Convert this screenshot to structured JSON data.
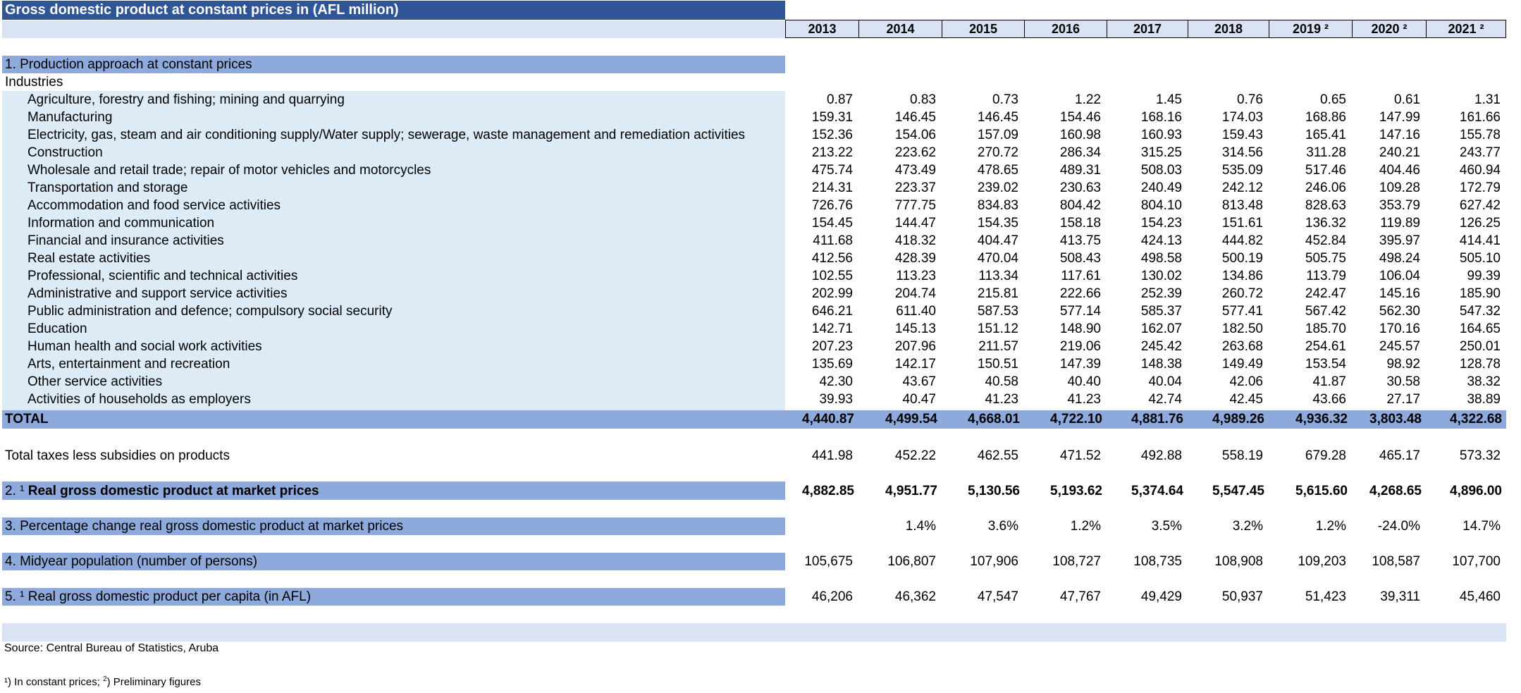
{
  "title": "Gross domestic product at constant prices in (AFL million)",
  "years": [
    "2013",
    "2014",
    "2015",
    "2016",
    "2017",
    "2018",
    "2019 ²",
    "2020 ²",
    "2021 ²"
  ],
  "section1": {
    "heading": "1. Production approach at constant prices",
    "subheading": "Industries",
    "rows": [
      {
        "label": "Agriculture, forestry and fishing; mining and quarrying",
        "values": [
          "0.87",
          "0.83",
          "0.73",
          "1.22",
          "1.45",
          "0.76",
          "0.65",
          "0.61",
          "1.31"
        ]
      },
      {
        "label": "Manufacturing",
        "values": [
          "159.31",
          "146.45",
          "146.45",
          "154.46",
          "168.16",
          "174.03",
          "168.86",
          "147.99",
          "161.66"
        ]
      },
      {
        "label": "Electricity, gas, steam and air conditioning supply/Water supply; sewerage, waste management and remediation activities",
        "values": [
          "152.36",
          "154.06",
          "157.09",
          "160.98",
          "160.93",
          "159.43",
          "165.41",
          "147.16",
          "155.78"
        ]
      },
      {
        "label": "Construction",
        "values": [
          "213.22",
          "223.62",
          "270.72",
          "286.34",
          "315.25",
          "314.56",
          "311.28",
          "240.21",
          "243.77"
        ]
      },
      {
        "label": "Wholesale and retail trade; repair of motor vehicles and motorcycles",
        "values": [
          "475.74",
          "473.49",
          "478.65",
          "489.31",
          "508.03",
          "535.09",
          "517.46",
          "404.46",
          "460.94"
        ]
      },
      {
        "label": "Transportation and storage",
        "values": [
          "214.31",
          "223.37",
          "239.02",
          "230.63",
          "240.49",
          "242.12",
          "246.06",
          "109.28",
          "172.79"
        ]
      },
      {
        "label": "Accommodation and food service activities",
        "values": [
          "726.76",
          "777.75",
          "834.83",
          "804.42",
          "804.10",
          "813.48",
          "828.63",
          "353.79",
          "627.42"
        ]
      },
      {
        "label": "Information and communication",
        "values": [
          "154.45",
          "144.47",
          "154.35",
          "158.18",
          "154.23",
          "151.61",
          "136.32",
          "119.89",
          "126.25"
        ]
      },
      {
        "label": "Financial and insurance activities",
        "values": [
          "411.68",
          "418.32",
          "404.47",
          "413.75",
          "424.13",
          "444.82",
          "452.84",
          "395.97",
          "414.41"
        ]
      },
      {
        "label": "Real estate activities",
        "values": [
          "412.56",
          "428.39",
          "470.04",
          "508.43",
          "498.58",
          "500.19",
          "505.75",
          "498.24",
          "505.10"
        ]
      },
      {
        "label": "Professional, scientific and technical activities",
        "values": [
          "102.55",
          "113.23",
          "113.34",
          "117.61",
          "130.02",
          "134.86",
          "113.79",
          "106.04",
          "99.39"
        ]
      },
      {
        "label": "Administrative and support service activities",
        "values": [
          "202.99",
          "204.74",
          "215.81",
          "222.66",
          "252.39",
          "260.72",
          "242.47",
          "145.16",
          "185.90"
        ]
      },
      {
        "label": "Public administration and defence; compulsory social security",
        "values": [
          "646.21",
          "611.40",
          "587.53",
          "577.14",
          "585.37",
          "577.41",
          "567.42",
          "562.30",
          "547.32"
        ]
      },
      {
        "label": "Education",
        "values": [
          "142.71",
          "145.13",
          "151.12",
          "148.90",
          "162.07",
          "182.50",
          "185.70",
          "170.16",
          "164.65"
        ]
      },
      {
        "label": "Human health and social work activities",
        "values": [
          "207.23",
          "207.96",
          "211.57",
          "219.06",
          "245.42",
          "263.68",
          "254.61",
          "245.57",
          "250.01"
        ]
      },
      {
        "label": "Arts, entertainment and recreation",
        "values": [
          "135.69",
          "142.17",
          "150.51",
          "147.39",
          "148.38",
          "149.49",
          "153.54",
          "98.92",
          "128.78"
        ]
      },
      {
        "label": "Other service activities",
        "values": [
          "42.30",
          "43.67",
          "40.58",
          "40.40",
          "40.04",
          "42.06",
          "41.87",
          "30.58",
          "38.32"
        ]
      },
      {
        "label": "Activities of households as employers",
        "values": [
          "39.93",
          "40.47",
          "41.23",
          "41.23",
          "42.74",
          "42.45",
          "43.66",
          "27.17",
          "38.89"
        ]
      }
    ],
    "total": {
      "label": "TOTAL",
      "values": [
        "4,440.87",
        "4,499.54",
        "4,668.01",
        "4,722.10",
        "4,881.76",
        "4,989.26",
        "4,936.32",
        "3,803.48",
        "4,322.68"
      ]
    }
  },
  "taxes": {
    "label": "Total taxes less subsidies on products",
    "values": [
      "441.98",
      "452.22",
      "462.55",
      "471.52",
      "492.88",
      "558.19",
      "679.28",
      "465.17",
      "573.32"
    ]
  },
  "section2": {
    "label_num": "2. ¹",
    "label": "Real gross domestic product at market prices",
    "values": [
      "4,882.85",
      "4,951.77",
      "5,130.56",
      "5,193.62",
      "5,374.64",
      "5,547.45",
      "5,615.60",
      "4,268.65",
      "4,896.00"
    ]
  },
  "section3": {
    "label": "3. Percentage change real gross domestic product at market prices",
    "values": [
      "",
      "1.4%",
      "3.6%",
      "1.2%",
      "3.5%",
      "3.2%",
      "1.2%",
      "-24.0%",
      "14.7%"
    ]
  },
  "section4": {
    "label": "4. Midyear population (number of persons)",
    "values": [
      "105,675",
      "106,807",
      "107,906",
      "108,727",
      "108,735",
      "108,908",
      "109,203",
      "108,587",
      "107,700"
    ]
  },
  "section5": {
    "label_num": "5. ¹",
    "label": "Real gross domestic product per capita (in AFL)",
    "values": [
      "46,206",
      "46,362",
      "47,547",
      "47,767",
      "49,429",
      "50,937",
      "51,423",
      "39,311",
      "45,460"
    ]
  },
  "source": "Source: Central Bureau of Statistics, Aruba",
  "footnote": {
    "mark1": "¹) In constant prices; ",
    "mark2_sup": "2",
    "mark2_text": ") Preliminary figures"
  },
  "colors": {
    "title_bg": "#2F5597",
    "band_dark": "#8EA9DB",
    "band_light": "#DDEBF7",
    "band_pale": "#DAE3F3"
  }
}
